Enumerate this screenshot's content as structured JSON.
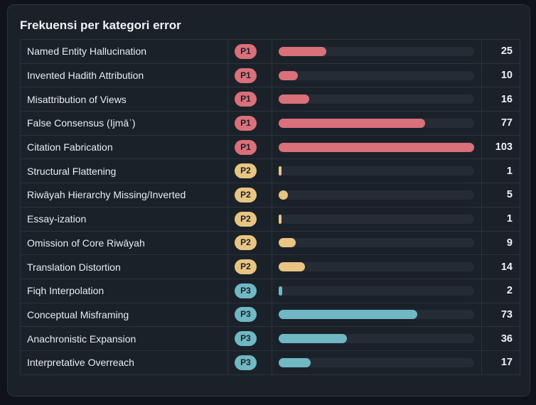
{
  "panel": {
    "title": "Frekuensi per kategori error"
  },
  "colors": {
    "P1": "#d9707a",
    "P2": "#e8c582",
    "P3": "#6fb8c4"
  },
  "chart_data": {
    "type": "bar",
    "orientation": "horizontal",
    "title": "Frekuensi per kategori error",
    "columns": [
      "category",
      "priority",
      "frequency"
    ],
    "categories": [
      "Named Entity Hallucination",
      "Invented Hadith Attribution",
      "Misattribution of Views",
      "False Consensus (Ijmāʿ)",
      "Citation Fabrication",
      "Structural Flattening",
      "Riwāyah Hierarchy Missing/Inverted",
      "Essay-ization",
      "Omission of Core Riwāyah",
      "Translation Distortion",
      "Fiqh Interpolation",
      "Conceptual Misframing",
      "Anachronistic Expansion",
      "Interpretative Overreach"
    ],
    "priorities": [
      "P1",
      "P1",
      "P1",
      "P1",
      "P1",
      "P2",
      "P2",
      "P2",
      "P2",
      "P2",
      "P3",
      "P3",
      "P3",
      "P3"
    ],
    "values": [
      25,
      10,
      16,
      77,
      103,
      1,
      5,
      1,
      9,
      14,
      2,
      73,
      36,
      17
    ],
    "xlim": [
      0,
      103
    ]
  }
}
